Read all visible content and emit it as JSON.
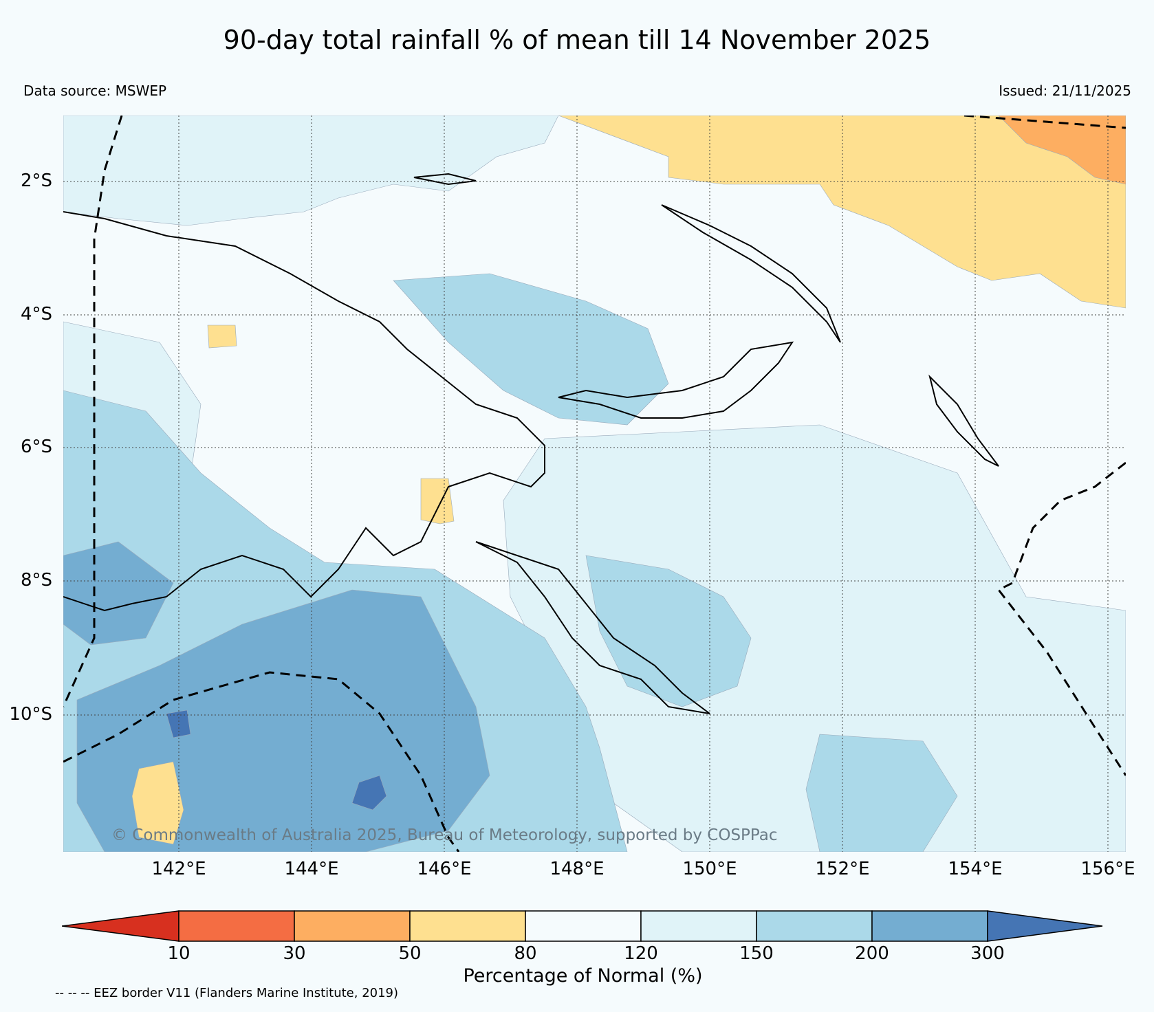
{
  "title": "90-day total rainfall % of mean till 14 November 2025",
  "data_source": "Data source: MSWEP",
  "issued": "Issued: 21/11/2025",
  "copyright": "© Commonwealth of Australia 2025, Bureau of Meteorology, supported by COSPPac",
  "eez_note": "-- -- -- EEZ border V11 (Flanders Marine Institute, 2019)",
  "lat_labels": [
    "2°S",
    "4°S",
    "6°S",
    "8°S",
    "10°S"
  ],
  "lon_labels": [
    "142°E",
    "144°E",
    "146°E",
    "148°E",
    "150°E",
    "152°E",
    "154°E",
    "156°E"
  ],
  "colorbar": {
    "label": "Percentage of Normal (%)",
    "ticks": [
      "10",
      "30",
      "50",
      "80",
      "120",
      "150",
      "200",
      "300"
    ],
    "colors": [
      "#d7301f",
      "#f46d43",
      "#fdae61",
      "#fee090",
      "#f5fbfd",
      "#e0f3f8",
      "#abd9e9",
      "#74add1",
      "#4575b4"
    ]
  }
}
